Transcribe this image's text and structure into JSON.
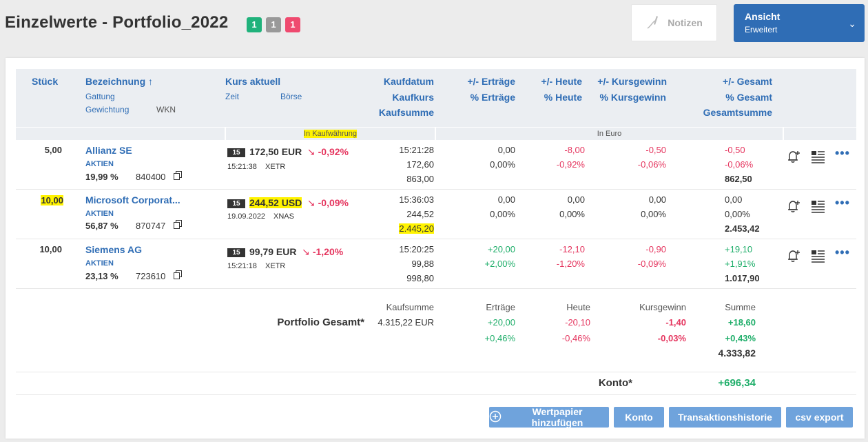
{
  "header": {
    "title": "Einzelwerte - Portfolio_2022",
    "badges": [
      {
        "value": "1",
        "color": "#20b27b"
      },
      {
        "value": "1",
        "color": "#999999"
      },
      {
        "value": "1",
        "color": "#ef4a6f"
      }
    ],
    "notizen_label": "Notizen",
    "ansicht_label": "Ansicht",
    "ansicht_value": "Erweitert"
  },
  "columns": {
    "stueck": "Stück",
    "bezeichnung": "Bezeichnung ↑",
    "gattung": "Gattung",
    "gewichtung": "Gewichtung",
    "wkn": "WKN",
    "kurs_aktuell": "Kurs aktuell",
    "zeit": "Zeit",
    "boerse": "Börse",
    "kaufdatum": "Kaufdatum",
    "kaufkurs": "Kaufkurs",
    "kaufsumme": "Kaufsumme",
    "ertraege": "+/- Erträge",
    "pct_ertraege": "% Erträge",
    "heute": "+/- Heute",
    "pct_heute": "% Heute",
    "kursgewinn": "+/- Kursgewinn",
    "pct_kursgewinn": "% Kursgewinn",
    "gesamt": "+/- Gesamt",
    "pct_gesamt": "% Gesamt",
    "gesamtsumme": "Gesamtsumme",
    "in_kaufwaehrung": "In Kaufwährung",
    "in_euro": "In Euro"
  },
  "rows": [
    {
      "stueck": "5,00",
      "name": "Allianz SE",
      "gattung": "AKTIEN",
      "gewichtung": "19,99 %",
      "wkn": "840400",
      "tag": "15",
      "kurs": "172,50 EUR",
      "kurs_pct": "-0,92%",
      "zeit": "15:21:38",
      "boerse": "XETR",
      "kaufdatum": "15:21:28",
      "kaufkurs": "172,60",
      "kaufsumme": "863,00",
      "ertraege": "0,00",
      "pct_ertraege": "0,00%",
      "heute": "-8,00",
      "pct_heute": "-0,92%",
      "kursgewinn": "-0,50",
      "pct_kursgewinn": "-0,06%",
      "gesamt": "-0,50",
      "pct_gesamt": "-0,06%",
      "gesamtsumme": "862,50"
    },
    {
      "stueck": "10,00",
      "name": "Microsoft Corporat...",
      "gattung": "AKTIEN",
      "gewichtung": "56,87 %",
      "wkn": "870747",
      "tag": "15",
      "kurs": "244,52 USD",
      "kurs_pct": "-0,09%",
      "zeit": "19.09.2022",
      "boerse": "XNAS",
      "kaufdatum": "15:36:03",
      "kaufkurs": "244,52",
      "kaufsumme": "2.445,20",
      "ertraege": "0,00",
      "pct_ertraege": "0,00%",
      "heute": "0,00",
      "pct_heute": "0,00%",
      "kursgewinn": "0,00",
      "pct_kursgewinn": "0,00%",
      "gesamt": "0,00",
      "pct_gesamt": "0,00%",
      "gesamtsumme": "2.453,42"
    },
    {
      "stueck": "10,00",
      "name": "Siemens AG",
      "gattung": "AKTIEN",
      "gewichtung": "23,13 %",
      "wkn": "723610",
      "tag": "15",
      "kurs": "99,79 EUR",
      "kurs_pct": "-1,20%",
      "zeit": "15:21:18",
      "boerse": "XETR",
      "kaufdatum": "15:20:25",
      "kaufkurs": "99,88",
      "kaufsumme": "998,80",
      "ertraege": "+20,00",
      "pct_ertraege": "+2,00%",
      "heute": "-12,10",
      "pct_heute": "-1,20%",
      "kursgewinn": "-0,90",
      "pct_kursgewinn": "-0,09%",
      "gesamt": "+19,10",
      "pct_gesamt": "+1,91%",
      "gesamtsumme": "1.017,90"
    }
  ],
  "summary": {
    "label": "Portfolio Gesamt*",
    "kaufsumme_label": "Kaufsumme",
    "kaufsumme": "4.315,22 EUR",
    "ertraege_label": "Erträge",
    "ertraege": "+20,00",
    "pct_ertraege": "+0,46%",
    "heute_label": "Heute",
    "heute": "-20,10",
    "pct_heute": "-0,46%",
    "kursgewinn_label": "Kursgewinn",
    "kursgewinn": "-1,40",
    "pct_kursgewinn": "-0,03%",
    "summe_label": "Summe",
    "summe": "+18,60",
    "pct_summe": "+0,43%",
    "gesamtsumme": "4.333,82"
  },
  "konto": {
    "label": "Konto*",
    "value": "+696,34"
  },
  "buttons": {
    "add": "Wertpapier hinzufügen",
    "konto": "Konto",
    "transaktionen": "Transaktionshistorie",
    "csv": "csv export"
  }
}
